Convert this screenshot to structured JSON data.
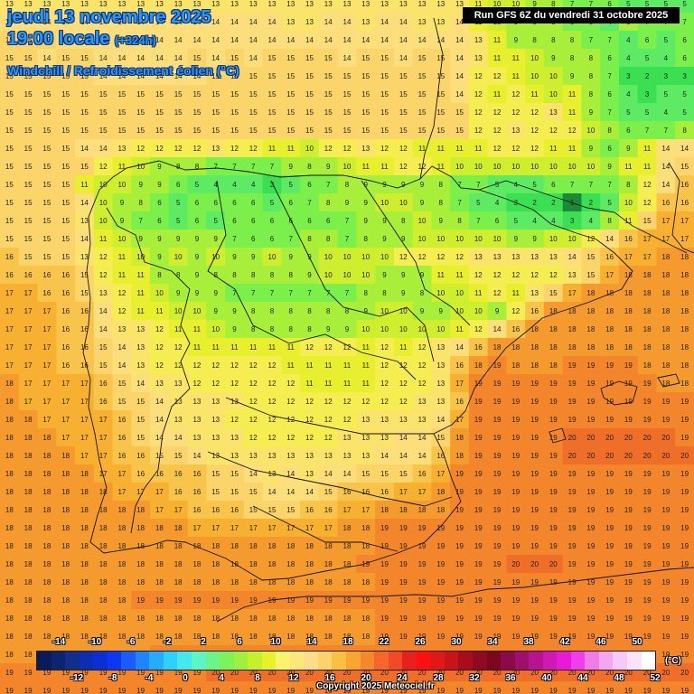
{
  "header": {
    "date": "jeudi 13 novembre 2025",
    "time": "19:00 locale",
    "offset": "(+324h)",
    "subtitle": "Windchill / Refroidissement éolien (°C)",
    "run": "Run GFS 6Z du vendredi 31 octobre 2025"
  },
  "legend": {
    "unit": "(°C)",
    "top_labels": [
      "-14",
      "-10",
      "-6",
      "-2",
      "2",
      "6",
      "10",
      "14",
      "18",
      "22",
      "26",
      "30",
      "34",
      "38",
      "42",
      "46",
      "50"
    ],
    "bottom_labels": [
      "-12",
      "-8",
      "-4",
      "0",
      "4",
      "8",
      "12",
      "16",
      "20",
      "24",
      "28",
      "32",
      "36",
      "40",
      "44",
      "48",
      "52"
    ],
    "colors": [
      "#0a1a5a",
      "#0d2470",
      "#102f8a",
      "#0b2fb0",
      "#0a2fd6",
      "#0a38f5",
      "#1b5cff",
      "#1e85ff",
      "#24acff",
      "#2dd0ff",
      "#46e8f0",
      "#5cf5c4",
      "#6af58a",
      "#7bf35a",
      "#9ef03c",
      "#c4f22a",
      "#e6f22a",
      "#fbf36a",
      "#fbe77a",
      "#fddc8a",
      "#fbd36a",
      "#fbc040",
      "#f9a52e",
      "#f7882a",
      "#f5662a",
      "#f24a26",
      "#e8201e",
      "#ff1010",
      "#e01818",
      "#c81418",
      "#a80e1a",
      "#8e0a20",
      "#7a0820",
      "#8a0a4a",
      "#a0106a",
      "#b81490",
      "#d018b4",
      "#e81ad6",
      "#f23cf0",
      "#f07ce8",
      "#f4a6f0",
      "#f8c8f6",
      "#fde2fb",
      "#ffffff"
    ]
  },
  "map_values": {
    "cols": 37,
    "rows": [
      "13 13 13 13 13 13 13 13 13 13 13 13 13 13 13 13 13 13 13 13 13 13 13 13 13 11 10 10 9 8 7 7 6 5 5 5 5",
      "14 14 14 14 14 14 14 14 14 14 14 14 14 14 14 13 13 14 14 13 14 14 13 13 14 11 10 9 9 8 6 6 4 8 7 7 7",
      "15 15 15 14 14 14 14 14 14 14 14 14 14 14 14 14 14 14 14 14 14 14 14 14 14 13 11 9 8 8 8 7 7 4 6 5 6",
      "15 15 14 15 15 14 14 14 14 14 15 14 15 14 15 15 15 15 14 15 15 14 15 15 14 13 11 11 10 9 8 8 6 4 5 4 6",
      "15 15 15 15 15 14 14 14 14 14 14 15 15 15 15 15 15 15 15 15 15 15 15 15 14 12 12 11 10 10 9 8 7 3 2 3 3",
      "15 15 15 15 15 15 15 15 15 15 15 15 15 15 15 15 15 15 15 15 15 15 15 15 14 12 11 12 11 10 11 8 6 4 3 5 5",
      "15 15 15 15 15 15 15 15 15 15 15 15 15 15 15 15 15 15 15 15 15 15 15 15 15 12 12 12 12 13 11 9 7 5 5 4 5",
      "15 15 15 15 15 15 15 15 15 15 15 15 15 15 15 15 15 15 15 15 15 15 15 15 15 12 12 13 12 12 12 10 8 6 7 7 8",
      "15 15 15 15 14 14 13 12 12 12 12 13 12 12 11 11 10 12 12 13 12 12 11 11 11 11 12 12 12 11 11 9 6 9 11 14 14",
      "15 15 15 15 15 12 11 10 9 8 8 7 7 7 7 9 8 9 10 11 11 12 12 11 10 10 10 10 10 10 10 10 9 11 11 14 15",
      "15 15 15 15 11 10 10 9 9 6 5 4 4 4 3 5 6 7 8 9 9 9 9 8 7 7 5 4 5 6 7 7 7 8 12 14 16",
      "15 15 15 15 14 10 9 8 6 5 6 6 6 6 5 6 7 8 9 9 10 10 9 8 7 5 4 3 2 2 1 2 5 10 12 16 16",
      "15 15 15 15 13 10 9 7 6 5 6 5 6 6 6 6 6 6 7 9 9 8 10 9 8 7 6 5 4 4 3 4 8 11 15 17 17",
      "15 15 15 15 14 11 10 9 9 9 9 9 7 6 6 7 8 8 7 8 9 9 10 10 10 10 10 9 9 10 10 12 14 16 17 17 17",
      "16 15 15 15 13 12 11 10 9 10 9 10 9 9 10 9 9 10 10 10 10 12 12 12 12 13 13 13 13 13 14 15 16 17 17 18 18",
      "16 16 16 16 15 12 11 11 8 8 9 8 8 8 8 8 9 10 10 10 9 9 9 11 11 12 12 12 12 12 13 15 17 18 18 18 18",
      "17 17 16 16 15 13 12 11 10 9 9 9 7 7 7 7 7 7 7 8 8 9 8 10 10 11 12 11 13 15 17 18 18 18 18 18 18",
      "17 17 17 16 16 14 12 11 11 10 10 9 9 8 8 8 8 8 8 9 10 10 9 9 10 10 9 12 16 18 18 18 18 18 18 18 18",
      "17 17 17 16 16 14 13 13 12 11 11 10 9 8 8 8 8 9 9 10 10 10 10 10 11 12 14 16 18 18 18 18 18 18 18 18 18",
      "17 17 17 16 16 15 14 13 12 12 11 11 11 11 11 11 12 12 12 11 12 11 12 13 14 16 18 18 18 18 18 18 18 18 18 18 18",
      "17 17 17 16 16 15 14 13 12 12 12 12 12 12 12 11 11 11 11 11 12 12 12 13 16 18 19 18 18 18 19 19 19 19 18 18 18",
      "18 17 17 17 17 16 15 14 13 13 12 12 12 12 12 12 11 11 11 11 12 12 12 13 17 19 19 19 19 19 19 19 19 19 19 18 18",
      "18 17 17 17 17 16 15 15 14 13 13 13 13 12 12 12 12 12 12 12 12 12 13 13 16 19 19 19 19 19 19 19 19 19 19 19 19",
      "18 18 17 17 17 17 16 15 14 13 13 13 12 12 12 12 12 12 12 13 13 13 13 14 17 19 19 19 19 19 19 19 19 19 19 19 19",
      "18 18 18 17 17 17 16 15 14 14 13 13 13 12 12 12 12 12 13 13 13 14 14 15 18 19 19 19 19 19 20 20 20 20 20 20 19",
      "18 18 18 18 17 17 16 16 15 15 14 13 13 13 13 13 13 13 13 13 14 14 14 16 18 19 19 19 19 19 20 20 20 20 20 20 20",
      "18 18 18 18 18 17 17 16 16 16 16 15 15 14 13 14 13 14 14 15 15 15 16 17 19 19 19 19 19 19 19 19 19 19 19 19 19",
      "18 18 18 18 18 18 17 17 17 16 16 15 15 15 14 14 14 15 16 16 16 17 17 18 19 19 19 19 19 19 19 19 19 19 19 19 19",
      "18 18 18 18 18 18 18 18 17 17 16 16 16 15 15 15 16 16 17 17 18 18 18 18 19 19 19 19 19 19 19 19 19 19 19 19 19",
      "18 18 18 18 18 18 18 18 18 18 17 17 17 17 17 17 17 17 18 18 19 19 19 19 19 19 19 19 19 19 19 19 19 19 19 19 19",
      "18 18 18 18 18 18 18 18 18 18 18 18 18 18 18 18 18 18 18 18 19 19 19 19 19 19 19 19 19 19 19 19 19 19 19 19 19",
      "18 18 18 18 18 18 18 18 18 18 18 18 18 18 18 18 18 18 18 19 19 19 19 19 19 19 19 20 20 20 19 19 19 19 19 19 19",
      "18 18 18 18 18 18 18 18 18 18 18 18 18 18 18 18 18 18 18 18 19 19 19 19 19 19 19 19 19 19 19 19 19 19 19 19 19",
      "18 18 18 18 18 18 18 19 19 19 19 19 19 19 19 19 19 19 19 19 19 19 19 19 19 19 19 19 19 19 19 19 19 19 19 19 19",
      "18 18 18 18 18 18 18 18 18 18 18 18 18 18 18 18 18 18 18 18 19 19 19 19 19 19 19 19 19 19 19 19 19 19 19 19 19",
      "18 18 18 18 18 18 18 18 18 18 18 18 18 18 18 18 18 18 18 18 19 19 19 19 19 19 19 19 19 19 19 19 19 19 19 19 19",
      "18 18 18 18 18 18 18 18 19 19 19 19 19 19 19 19 19 19 19 19 19 19 19 19 19 19 19 19 19 19 19 19 19 19 19 19 19",
      "19 19 19 19 19 19 19 19 19 19 19 20 20 20 20 20 20 20 20 20 20 20 20 20 20 20 20 20 20 20 20 20 20 20 20 20 20",
      "19 19 19 19 19 19 19 19 19 19 19 19 19 19 19 19 19 19 19 19 19 19 19 19 19 19 19 19 19 19 19 19 19 19 19 19 19"
    ]
  },
  "copyright": "Copyright 2025 Meteociel.fr"
}
